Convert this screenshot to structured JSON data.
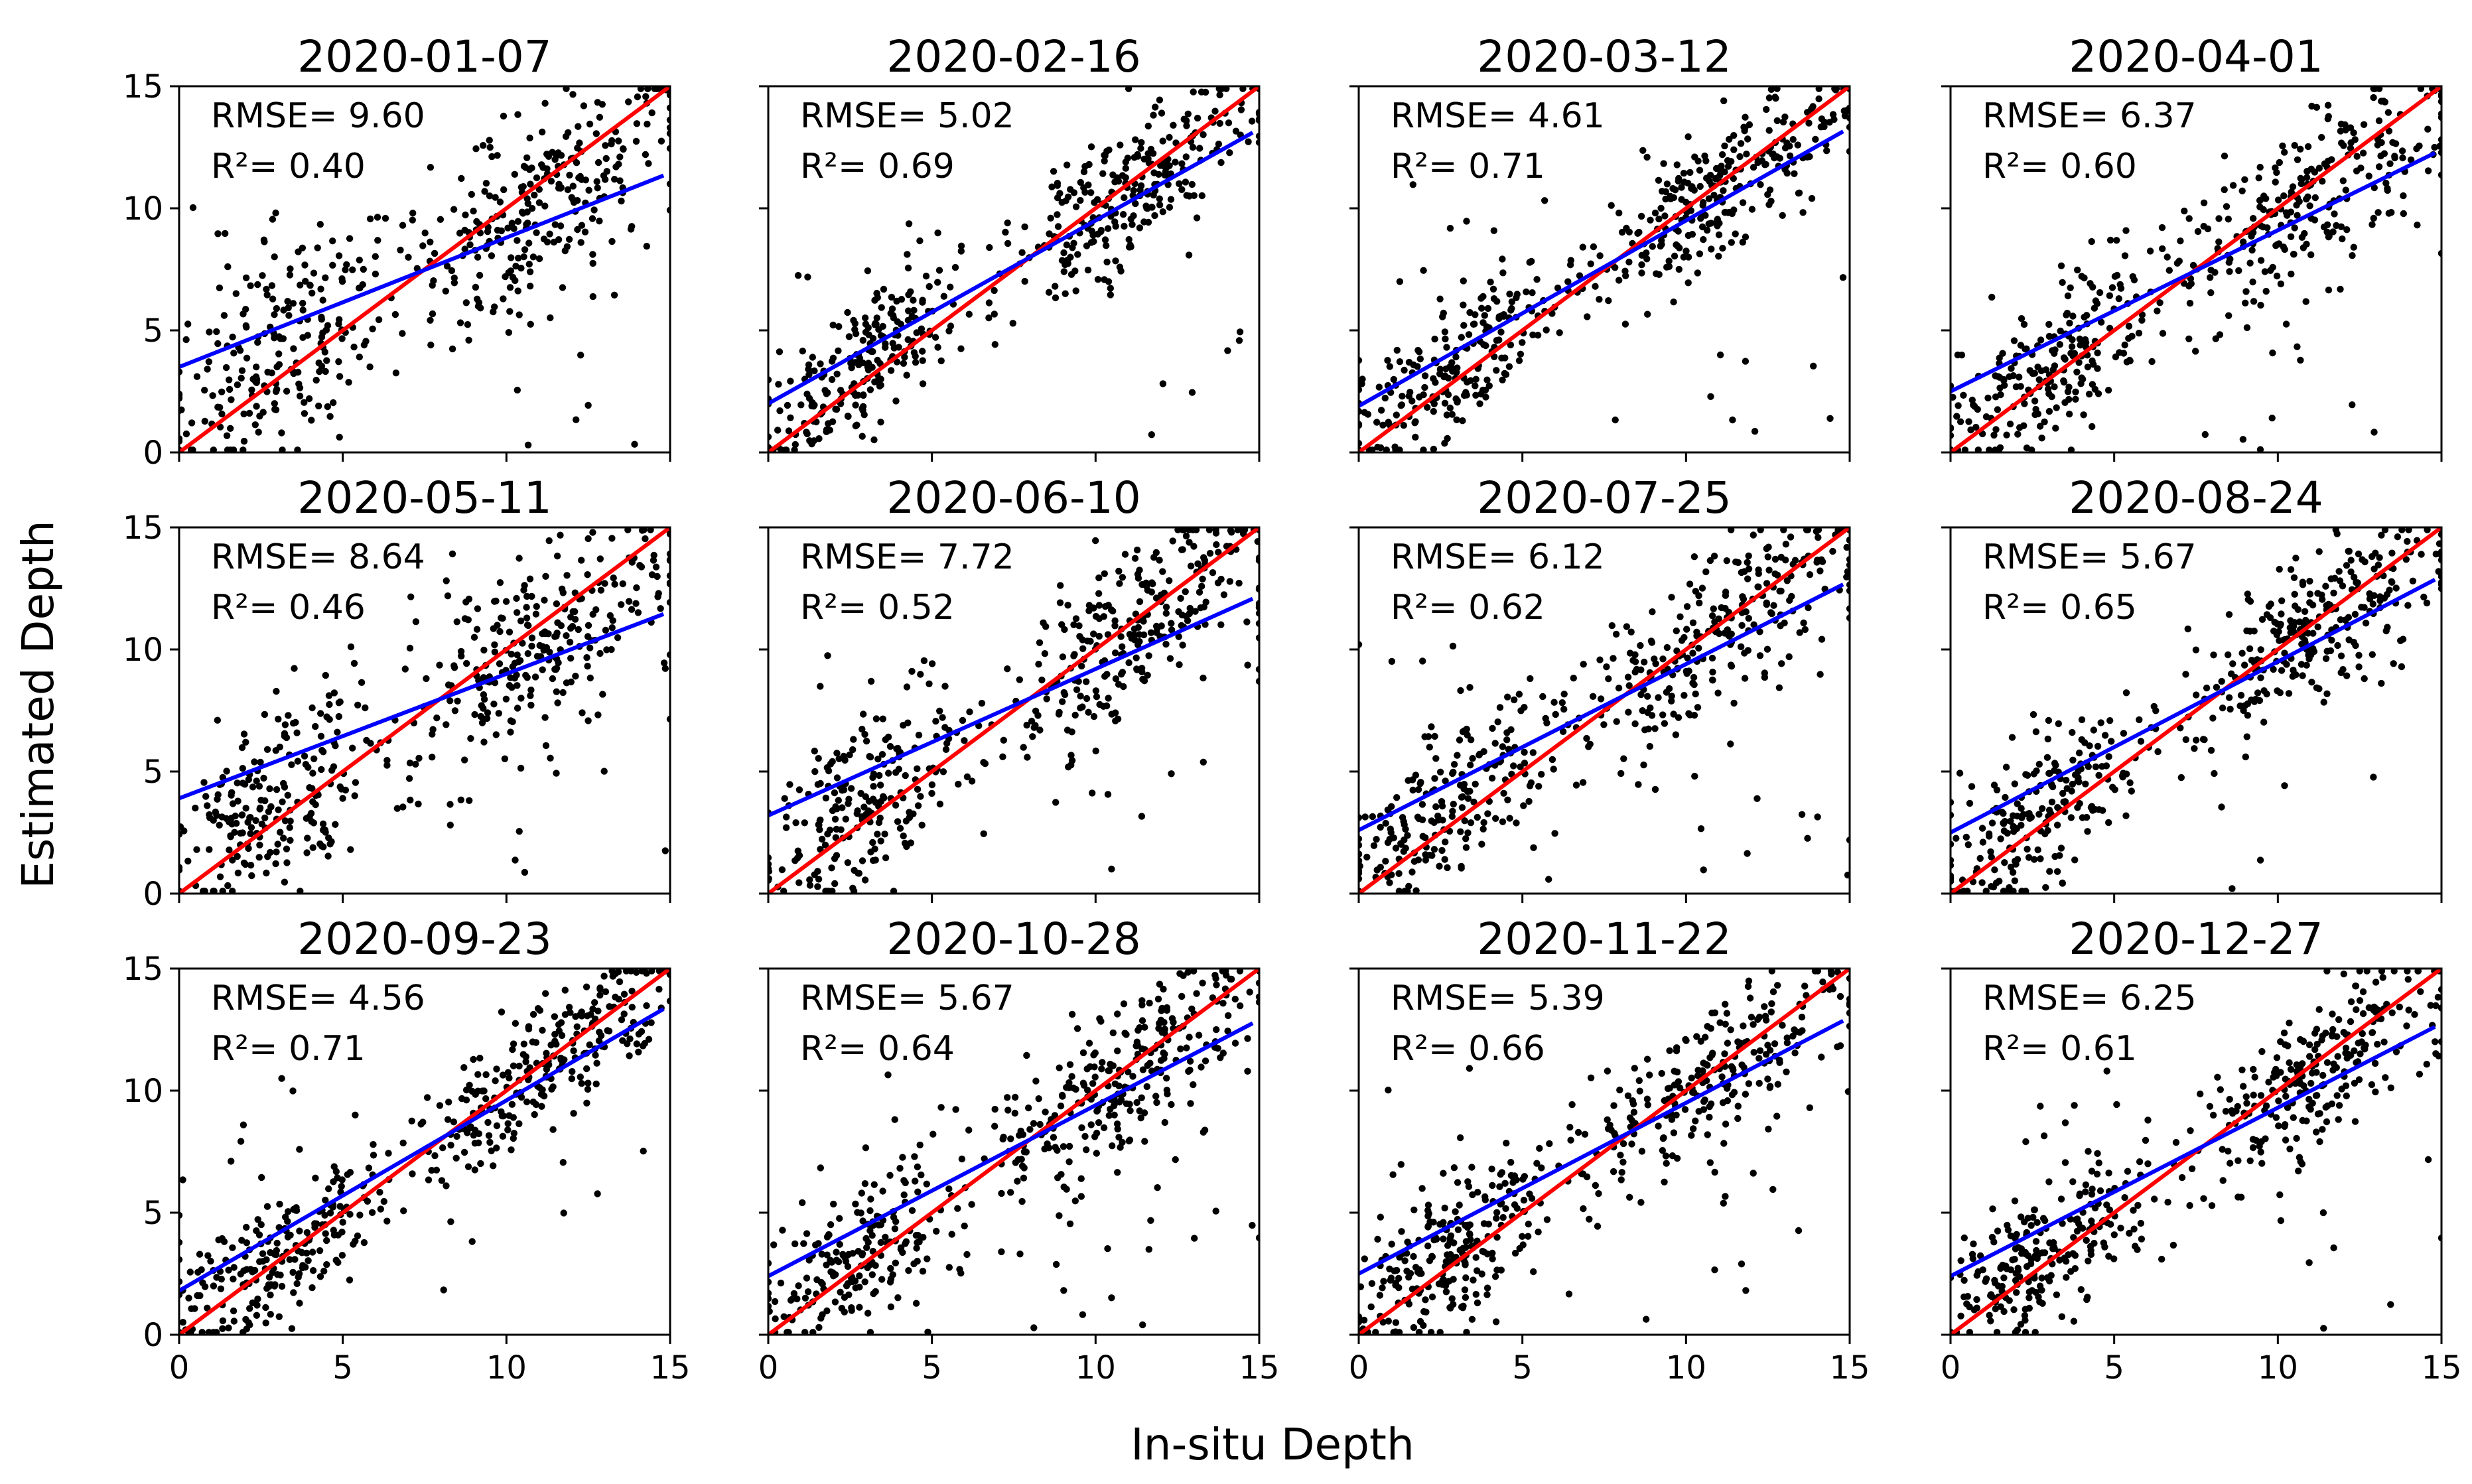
{
  "chart_data": {
    "type": "scatter",
    "layout": "3x4 small multiples",
    "shared_xlabel": "In-situ Depth",
    "shared_ylabel": "Estimated Depth",
    "xlim": [
      0,
      15
    ],
    "ylim": [
      0,
      15
    ],
    "xticks": [
      0,
      5,
      10,
      15
    ],
    "yticks": [
      0,
      5,
      10,
      15
    ],
    "series_styles": {
      "points": {
        "name": "observations",
        "color": "#000000"
      },
      "one_to_one": {
        "name": "1:1 line",
        "color": "#ff0000"
      },
      "fit": {
        "name": "regression fit",
        "color": "#0000ff"
      }
    },
    "panels": [
      {
        "title": "2020-01-07",
        "rmse": "9.60",
        "r2": "0.40",
        "fit_intercept": 3.5,
        "fit_slope": 0.53
      },
      {
        "title": "2020-02-16",
        "rmse": "5.02",
        "r2": "0.69",
        "fit_intercept": 2.0,
        "fit_slope": 0.75
      },
      {
        "title": "2020-03-12",
        "rmse": "4.61",
        "r2": "0.71",
        "fit_intercept": 1.9,
        "fit_slope": 0.76
      },
      {
        "title": "2020-04-01",
        "rmse": "6.37",
        "r2": "0.60",
        "fit_intercept": 2.5,
        "fit_slope": 0.66
      },
      {
        "title": "2020-05-11",
        "rmse": "8.64",
        "r2": "0.46",
        "fit_intercept": 3.9,
        "fit_slope": 0.51
      },
      {
        "title": "2020-06-10",
        "rmse": "7.72",
        "r2": "0.52",
        "fit_intercept": 3.2,
        "fit_slope": 0.6
      },
      {
        "title": "2020-07-25",
        "rmse": "6.12",
        "r2": "0.62",
        "fit_intercept": 2.6,
        "fit_slope": 0.68
      },
      {
        "title": "2020-08-24",
        "rmse": "5.67",
        "r2": "0.65",
        "fit_intercept": 2.5,
        "fit_slope": 0.7
      },
      {
        "title": "2020-09-23",
        "rmse": "4.56",
        "r2": "0.71",
        "fit_intercept": 1.8,
        "fit_slope": 0.78
      },
      {
        "title": "2020-10-28",
        "rmse": "5.67",
        "r2": "0.64",
        "fit_intercept": 2.4,
        "fit_slope": 0.7
      },
      {
        "title": "2020-11-22",
        "rmse": "5.39",
        "r2": "0.66",
        "fit_intercept": 2.5,
        "fit_slope": 0.7
      },
      {
        "title": "2020-12-27",
        "rmse": "6.25",
        "r2": "0.61",
        "fit_intercept": 2.4,
        "fit_slope": 0.69
      }
    ]
  }
}
